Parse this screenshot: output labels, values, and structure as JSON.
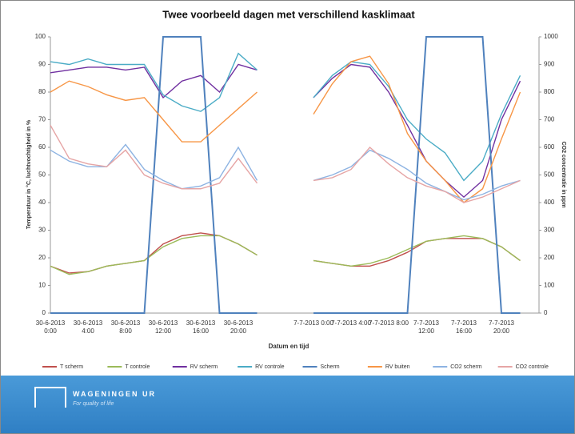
{
  "chart_data": {
    "type": "line",
    "title": "Twee voorbeeld dagen met verschillend kasklimaat",
    "x_label": "Datum en tijd",
    "y_label": "Temperatuur in °C, luchtvochtigheid in %",
    "y2_label": "CO2 concentratie in ppm",
    "categories": [
      "30-6-2013 0:00",
      null,
      "30-6-2013 4:00",
      null,
      "30-6-2013 8:00",
      null,
      "30-6-2013 12:00",
      null,
      "30-6-2013 16:00",
      null,
      "30-6-2013 20:00",
      null,
      null,
      null,
      "7-7-2013 0:00",
      null,
      "7-7-2013 4:00",
      null,
      "7-7-2013 8:00",
      null,
      "7-7-2013 12:00",
      null,
      "7-7-2013 16:00",
      null,
      "7-7-2013 20:00",
      null
    ],
    "ylim": [
      0,
      100
    ],
    "yticks": [
      0,
      10,
      20,
      30,
      40,
      50,
      60,
      70,
      80,
      90,
      100
    ],
    "y2lim": [
      0,
      1000
    ],
    "y2ticks": [
      0,
      100,
      200,
      300,
      400,
      500,
      600,
      700,
      800,
      900,
      1000
    ],
    "grid": false,
    "series": [
      {
        "name": "T scherm",
        "color": "#c0504d",
        "values": [
          17,
          14.5,
          15,
          17,
          18,
          19,
          25,
          28,
          29,
          28,
          25,
          21,
          null,
          null,
          19,
          18,
          17,
          17,
          19,
          22,
          26,
          27,
          27,
          27,
          24,
          19
        ]
      },
      {
        "name": "T controle",
        "color": "#9bbb59",
        "values": [
          17,
          14,
          15,
          17,
          18,
          19,
          24,
          27,
          28,
          28,
          25,
          21,
          null,
          null,
          19,
          18,
          17,
          18,
          20,
          23,
          26,
          27,
          28,
          27,
          24,
          19
        ]
      },
      {
        "name": "RV scherm",
        "color": "#7030a0",
        "values": [
          87,
          88,
          89,
          89,
          88,
          89,
          78,
          84,
          86,
          80,
          90,
          88,
          null,
          null,
          78,
          85,
          90,
          89,
          80,
          68,
          55,
          48,
          42,
          48,
          70,
          84
        ]
      },
      {
        "name": "RV controle",
        "color": "#4bacc6",
        "values": [
          91,
          90,
          92,
          90,
          90,
          90,
          79,
          75,
          73,
          78,
          94,
          88,
          null,
          null,
          78,
          86,
          91,
          90,
          82,
          70,
          63,
          58,
          48,
          55,
          72,
          86
        ]
      },
      {
        "name": "Scherm",
        "color": "#4f81bd",
        "values": [
          0,
          0,
          0,
          0,
          0,
          0,
          100,
          100,
          100,
          0,
          0,
          0,
          null,
          null,
          0,
          0,
          0,
          0,
          0,
          0,
          100,
          100,
          100,
          100,
          0,
          0
        ]
      },
      {
        "name": "RV buiten",
        "color": "#f79646",
        "values": [
          80,
          84,
          82,
          79,
          77,
          78,
          70,
          62,
          62,
          68,
          74,
          80,
          null,
          null,
          72,
          83,
          91,
          93,
          83,
          65,
          55,
          48,
          40,
          45,
          63,
          80
        ]
      },
      {
        "name": "CO2 scherm",
        "color": "#8db3e2",
        "axis": "y2",
        "values": [
          590,
          550,
          530,
          530,
          610,
          520,
          480,
          450,
          460,
          490,
          600,
          480,
          null,
          null,
          480,
          500,
          530,
          590,
          560,
          520,
          470,
          440,
          410,
          430,
          460,
          480
        ]
      },
      {
        "name": "CO2 controle",
        "color": "#e6a5a5",
        "axis": "y2",
        "values": [
          680,
          560,
          540,
          530,
          590,
          500,
          470,
          450,
          450,
          470,
          560,
          470,
          null,
          null,
          480,
          490,
          520,
          600,
          540,
          490,
          460,
          440,
          400,
          420,
          450,
          480
        ]
      }
    ]
  },
  "footer": {
    "logo": "WAGENINGEN UR",
    "tagline": "For quality of life"
  }
}
